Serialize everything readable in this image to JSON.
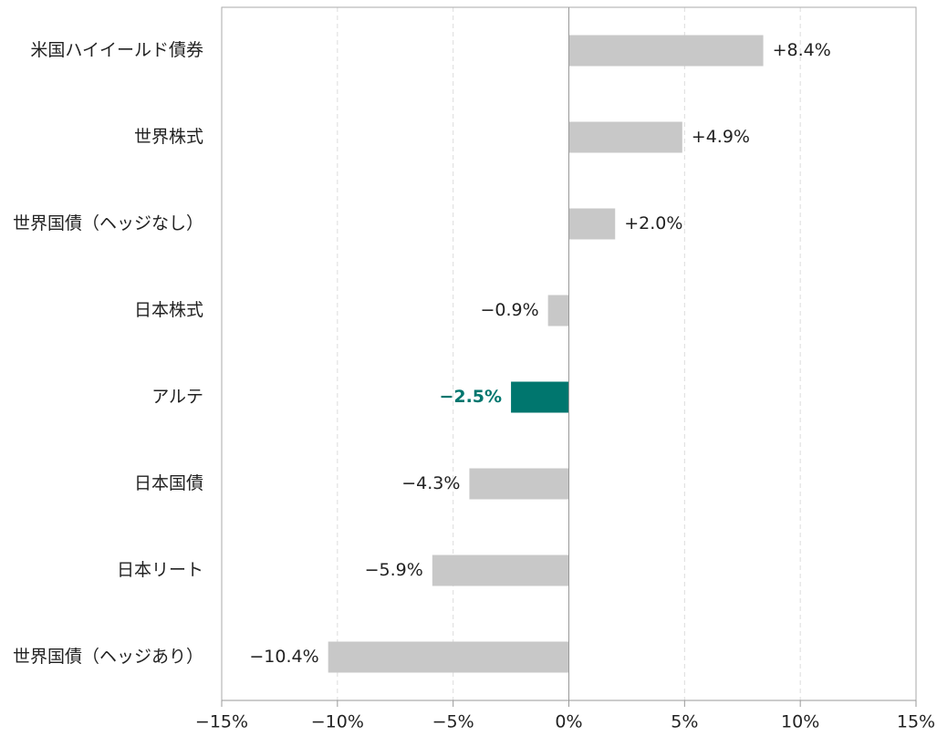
{
  "chart_data": {
    "type": "barh",
    "categories": [
      "米国ハイイールド債券",
      "世界株式",
      "世界国債（ヘッジなし）",
      "日本株式",
      "アルテ",
      "日本国債",
      "日本リート",
      "世界国債（ヘッジあり）"
    ],
    "values": [
      8.4,
      4.9,
      2.0,
      -0.9,
      -2.5,
      -4.3,
      -5.9,
      -10.4
    ],
    "value_labels": [
      "+8.4%",
      "+4.9%",
      "+2.0%",
      "−0.9%",
      "−2.5%",
      "−4.3%",
      "−5.9%",
      "−10.4%"
    ],
    "colors": [
      "#c8c8c8",
      "#c8c8c8",
      "#c8c8c8",
      "#c8c8c8",
      "#00766e",
      "#c8c8c8",
      "#c8c8c8",
      "#c8c8c8"
    ],
    "label_colors": [
      "#222222",
      "#222222",
      "#222222",
      "#222222",
      "#00766e",
      "#222222",
      "#222222",
      "#222222"
    ],
    "xlim": [
      -15,
      15
    ],
    "xticks": [
      {
        "value": -15,
        "label": "−15%"
      },
      {
        "value": -10,
        "label": "−10%"
      },
      {
        "value": -5,
        "label": "−5%"
      },
      {
        "value": 0,
        "label": "0%"
      },
      {
        "value": 5,
        "label": "5%"
      },
      {
        "value": 10,
        "label": "10%"
      },
      {
        "value": 15,
        "label": "15%"
      }
    ],
    "grid": true
  }
}
